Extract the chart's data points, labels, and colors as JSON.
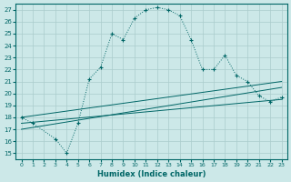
{
  "xlabel": "Humidex (Indice chaleur)",
  "background_color": "#cce8e8",
  "grid_color": "#aacccc",
  "line_color": "#006666",
  "xlim": [
    -0.5,
    23.5
  ],
  "ylim": [
    14.5,
    27.5
  ],
  "xticks": [
    0,
    1,
    2,
    3,
    4,
    5,
    6,
    7,
    8,
    9,
    10,
    11,
    12,
    13,
    14,
    15,
    16,
    17,
    18,
    19,
    20,
    21,
    22,
    23
  ],
  "yticks": [
    15,
    16,
    17,
    18,
    19,
    20,
    21,
    22,
    23,
    24,
    25,
    26,
    27
  ],
  "line1_x": [
    0,
    1,
    3,
    4,
    5,
    6,
    7,
    8,
    9,
    10,
    11,
    12,
    13,
    14,
    15,
    16,
    17,
    18,
    19,
    20,
    21,
    22,
    23
  ],
  "line1_y": [
    18.0,
    17.5,
    16.2,
    15.0,
    17.5,
    21.2,
    22.2,
    25.0,
    24.5,
    26.3,
    27.0,
    27.2,
    27.0,
    26.5,
    24.5,
    22.0,
    22.0,
    23.2,
    21.5,
    21.0,
    19.8,
    19.3,
    19.7
  ],
  "line2_x": [
    0,
    23
  ],
  "line2_y": [
    18.0,
    21.0
  ],
  "line3_x": [
    0,
    23
  ],
  "line3_y": [
    17.5,
    19.5
  ],
  "line4_x": [
    0,
    23
  ],
  "line4_y": [
    17.0,
    20.5
  ]
}
